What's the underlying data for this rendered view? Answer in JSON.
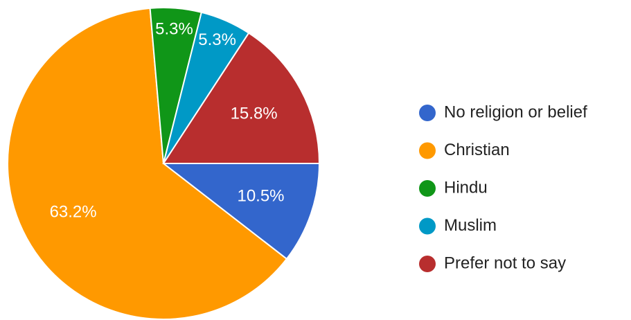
{
  "chart_data": {
    "type": "pie",
    "categories": [
      "No religion or belief",
      "Christian",
      "Hindu",
      "Muslim",
      "Prefer not to say"
    ],
    "values": [
      10.5,
      63.2,
      5.3,
      5.3,
      15.8
    ],
    "value_labels": [
      "10.5%",
      "63.2%",
      "5.3%",
      "5.3%",
      "15.8%"
    ],
    "colors": [
      "#3366cc",
      "#ff9900",
      "#109618",
      "#0099c6",
      "#b82e2e"
    ],
    "legend": "right"
  }
}
